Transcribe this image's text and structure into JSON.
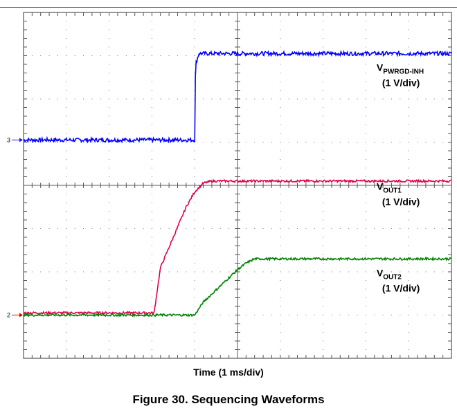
{
  "figure": {
    "caption": "Figure 30. Sequencing Waveforms",
    "xlabel": "Time (1 ms/div)"
  },
  "chart_data": {
    "type": "line",
    "title": "",
    "xlabel": "Time (1 ms/div)",
    "ylabel": "",
    "grid": true,
    "divisions": {
      "x": 10,
      "y": 8
    },
    "xlim_div": [
      0,
      10
    ],
    "ylim_div": [
      0,
      8
    ],
    "channel_markers": [
      {
        "label": "3",
        "ydiv": 5.05,
        "color": "#1a1aff"
      },
      {
        "label": "2",
        "ydiv": 1.0,
        "color": "#d40000"
      }
    ],
    "series": [
      {
        "name": "V_PWRGD-INH",
        "label_main": "V",
        "label_sub": "PWRGD-INH",
        "scale": "(1 V/div)",
        "color": "#0000ff",
        "noise": 0.045,
        "x": [
          0,
          4.0,
          4.02,
          4.1,
          10
        ],
        "y": [
          5.05,
          5.05,
          6.8,
          7.05,
          7.05
        ]
      },
      {
        "name": "V_OUT1",
        "label_main": "V",
        "label_sub": "OUT1",
        "scale": "(1 V/div)",
        "color": "#e0004a",
        "noise": 0.025,
        "x": [
          0,
          3.05,
          3.2,
          3.5,
          3.8,
          4.0,
          4.2,
          4.4,
          10
        ],
        "y": [
          1.05,
          1.05,
          2.1,
          2.8,
          3.5,
          3.85,
          4.05,
          4.1,
          4.1
        ]
      },
      {
        "name": "V_OUT2",
        "label_main": "V",
        "label_sub": "OUT2",
        "scale": "(1 V/div)",
        "color": "#008000",
        "noise": 0.025,
        "x": [
          0,
          4.0,
          4.2,
          5.0,
          5.2,
          5.4,
          10
        ],
        "y": [
          1.0,
          1.0,
          1.3,
          2.05,
          2.2,
          2.3,
          2.3
        ]
      }
    ],
    "label_positions_div": [
      {
        "series": 0,
        "xdiv": 8.25,
        "ydiv": 6.65
      },
      {
        "series": 1,
        "xdiv": 8.25,
        "ydiv": 3.9
      },
      {
        "series": 2,
        "xdiv": 8.25,
        "ydiv": 1.9
      }
    ]
  }
}
